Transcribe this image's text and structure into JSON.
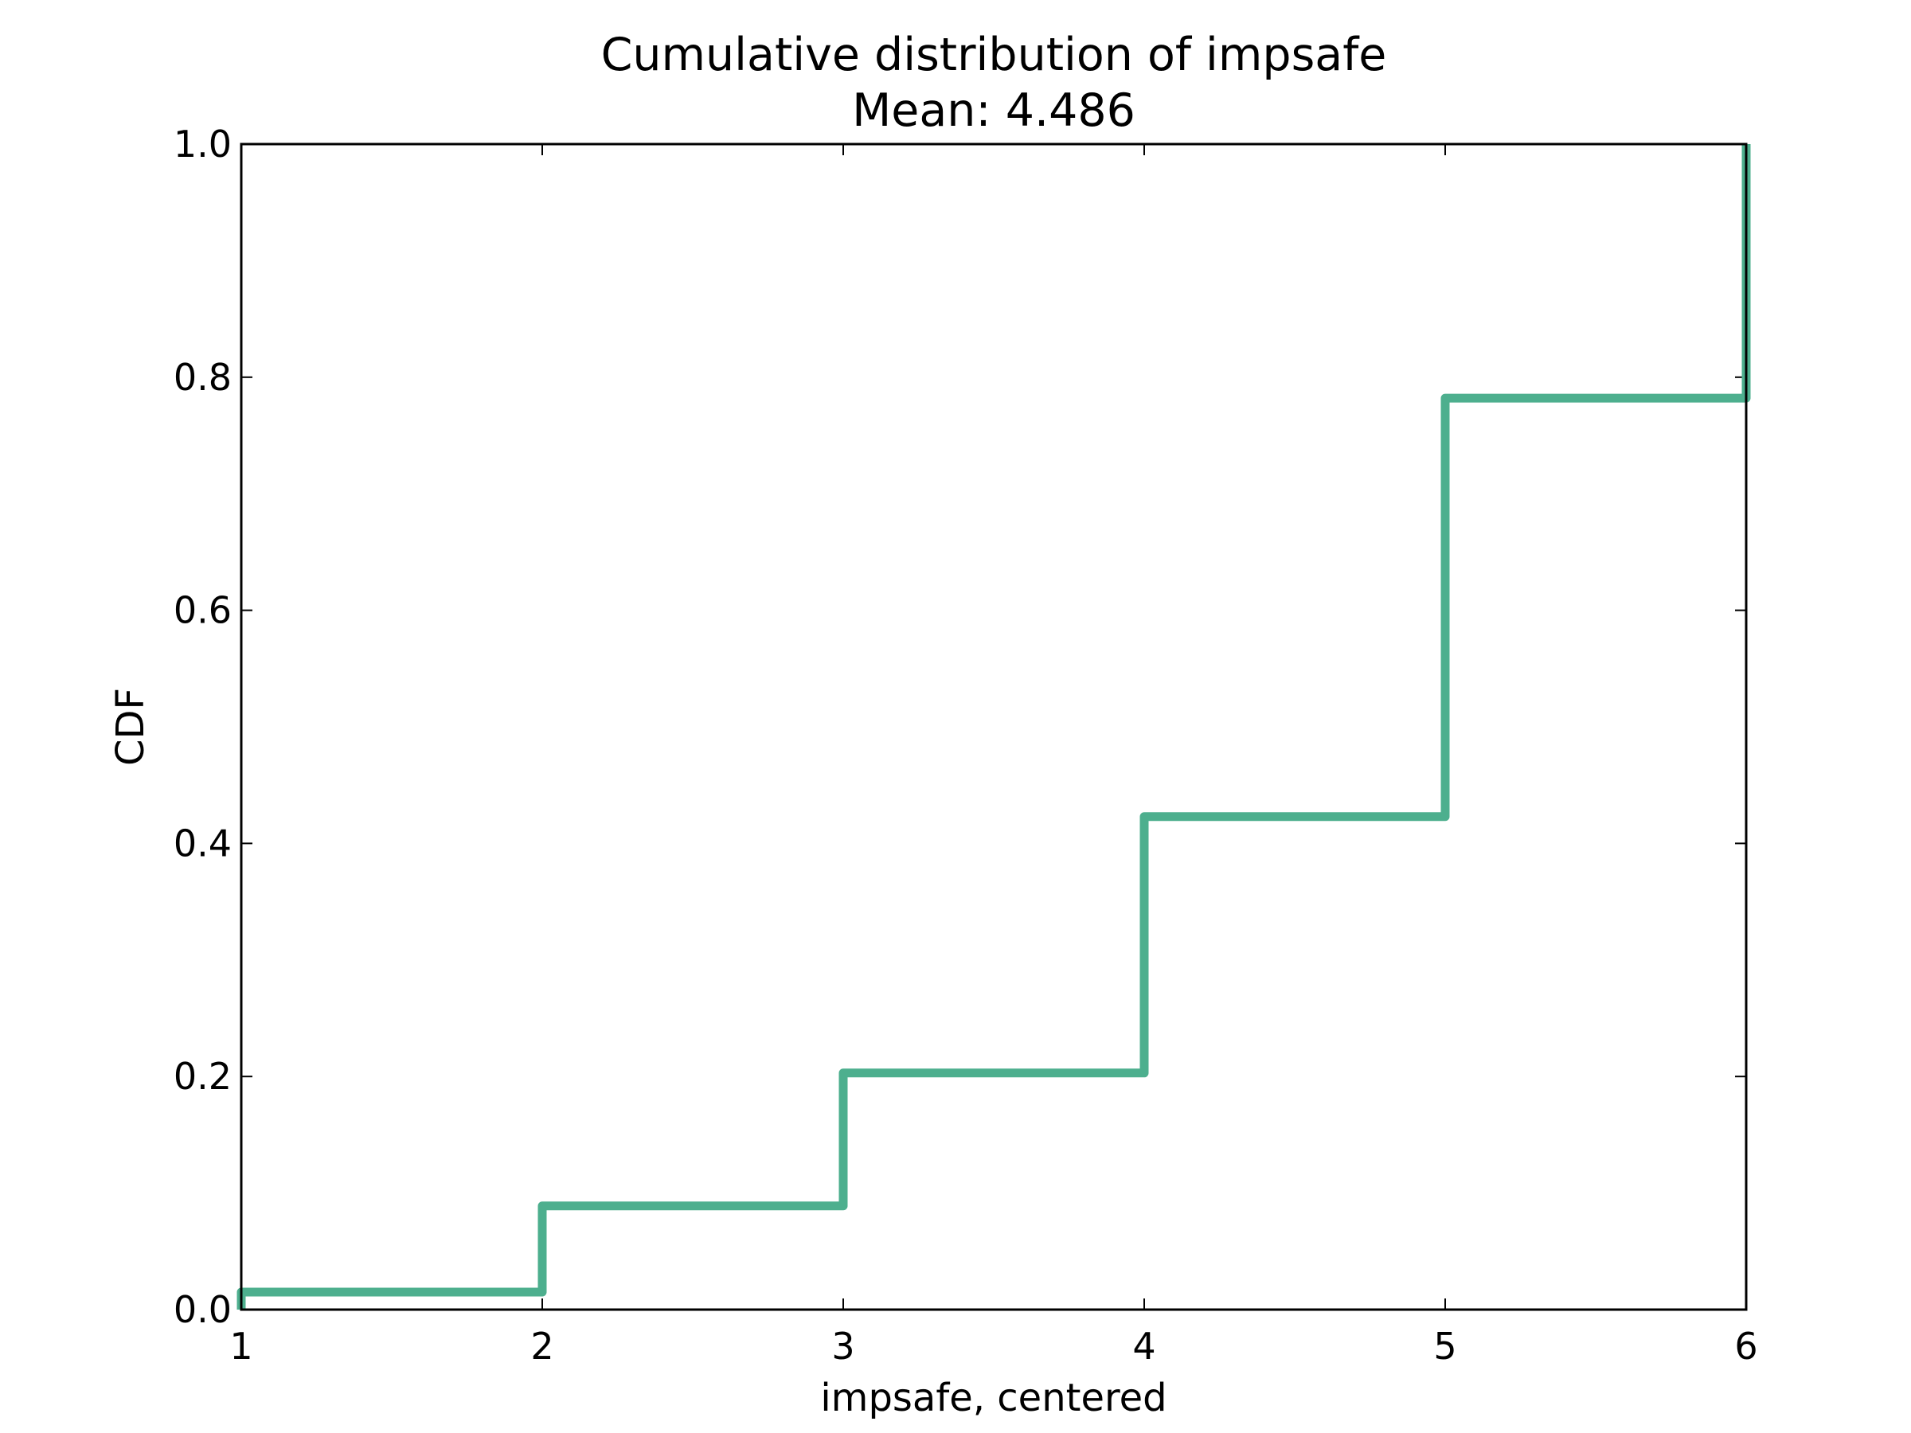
{
  "chart_data": {
    "type": "line",
    "step": "post",
    "title": "Cumulative distribution of impsafe",
    "subtitle": "Mean: 4.486",
    "xlabel": "impsafe, centered",
    "ylabel": "CDF",
    "xlim": [
      1,
      6
    ],
    "ylim": [
      0,
      1
    ],
    "xticks": [
      "1",
      "2",
      "3",
      "4",
      "5",
      "6"
    ],
    "yticks": [
      "0.0",
      "0.2",
      "0.4",
      "0.6",
      "0.8",
      "1.0"
    ],
    "grid": false,
    "legend": "none",
    "series": [
      {
        "color": "#4daf8e",
        "x": [
          1,
          2,
          3,
          4,
          5,
          6
        ],
        "y": [
          0.015,
          0.089,
          0.203,
          0.423,
          0.782,
          1.0
        ]
      }
    ]
  }
}
